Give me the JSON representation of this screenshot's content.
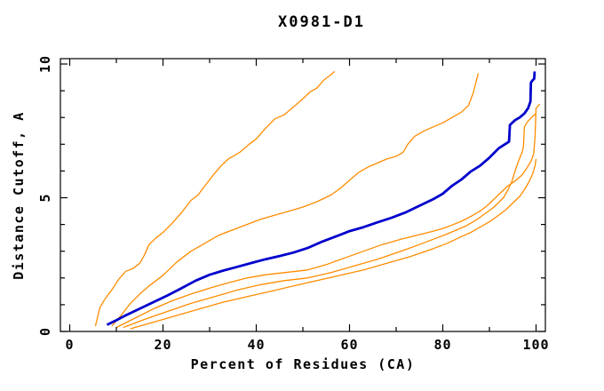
{
  "window": {
    "title": "X0981-D1"
  },
  "chart_data": {
    "type": "line",
    "title": "X0981-D1",
    "xlabel": "Percent of Residues (CA)",
    "ylabel": "Distance Cutoff, A",
    "xlim": [
      -2,
      102
    ],
    "ylim": [
      0,
      10.2
    ],
    "grid": false,
    "legend": null,
    "xticks": {
      "major": [
        0,
        20,
        40,
        60,
        80,
        100
      ],
      "minor": [
        10,
        30,
        50,
        70,
        90
      ],
      "major_labels": [
        "0",
        "20",
        "40",
        "60",
        "80",
        "100"
      ]
    },
    "yticks": {
      "major": [
        0,
        5,
        10
      ],
      "minor": [
        1,
        2,
        3,
        4,
        6,
        7,
        8,
        9
      ],
      "major_labels": [
        "0",
        "5",
        "10"
      ]
    },
    "colors": {
      "orange_series": "#ff8c00",
      "blue_series": "#0000cc",
      "axis": "#000000",
      "background": "#ffffff"
    },
    "series": [
      {
        "name": "orange-1",
        "color": "#ff8c00",
        "width": 1.3,
        "points": [
          [
            5.5,
            0.2
          ],
          [
            6,
            0.55
          ],
          [
            6.5,
            0.9
          ],
          [
            7.5,
            1.2
          ],
          [
            9,
            1.55
          ],
          [
            10.5,
            1.95
          ],
          [
            12,
            2.25
          ],
          [
            13.5,
            2.35
          ],
          [
            15,
            2.55
          ],
          [
            16,
            2.85
          ],
          [
            17,
            3.25
          ],
          [
            18.5,
            3.5
          ],
          [
            20,
            3.7
          ],
          [
            22,
            4.05
          ],
          [
            24,
            4.45
          ],
          [
            26,
            4.9
          ],
          [
            27.5,
            5.1
          ],
          [
            29,
            5.45
          ],
          [
            31,
            5.9
          ],
          [
            32.5,
            6.2
          ],
          [
            34,
            6.45
          ],
          [
            36.5,
            6.7
          ],
          [
            38.5,
            7.0
          ],
          [
            40,
            7.2
          ],
          [
            42,
            7.6
          ],
          [
            44,
            7.95
          ],
          [
            46,
            8.1
          ],
          [
            48,
            8.4
          ],
          [
            50,
            8.7
          ],
          [
            51.5,
            8.95
          ],
          [
            53,
            9.1
          ],
          [
            54.5,
            9.4
          ],
          [
            56,
            9.6
          ],
          [
            56.8,
            9.72
          ]
        ]
      },
      {
        "name": "orange-2",
        "color": "#ff8c00",
        "width": 1.3,
        "points": [
          [
            9,
            0.2
          ],
          [
            11,
            0.6
          ],
          [
            13,
            1.05
          ],
          [
            15,
            1.4
          ],
          [
            17,
            1.7
          ],
          [
            20,
            2.1
          ],
          [
            23,
            2.6
          ],
          [
            26,
            3.0
          ],
          [
            29,
            3.3
          ],
          [
            32,
            3.6
          ],
          [
            35,
            3.8
          ],
          [
            38,
            4.0
          ],
          [
            41,
            4.2
          ],
          [
            44,
            4.35
          ],
          [
            47,
            4.5
          ],
          [
            50,
            4.65
          ],
          [
            53,
            4.85
          ],
          [
            56,
            5.1
          ],
          [
            58,
            5.35
          ],
          [
            60,
            5.65
          ],
          [
            62,
            5.95
          ],
          [
            64,
            6.15
          ],
          [
            66,
            6.3
          ],
          [
            68,
            6.45
          ],
          [
            70,
            6.55
          ],
          [
            71.5,
            6.7
          ],
          [
            72.5,
            7.0
          ],
          [
            74,
            7.3
          ],
          [
            76,
            7.5
          ],
          [
            78,
            7.65
          ],
          [
            80,
            7.8
          ],
          [
            82,
            8.0
          ],
          [
            84,
            8.2
          ],
          [
            85.5,
            8.45
          ],
          [
            86.5,
            8.9
          ],
          [
            87,
            9.25
          ],
          [
            87.6,
            9.65
          ]
        ]
      },
      {
        "name": "orange-3",
        "color": "#ff8c00",
        "width": 1.3,
        "points": [
          [
            10,
            0.15
          ],
          [
            14,
            0.5
          ],
          [
            18,
            0.85
          ],
          [
            22,
            1.15
          ],
          [
            26,
            1.4
          ],
          [
            30,
            1.62
          ],
          [
            34,
            1.82
          ],
          [
            38,
            2.0
          ],
          [
            42,
            2.12
          ],
          [
            46,
            2.2
          ],
          [
            51,
            2.3
          ],
          [
            55,
            2.5
          ],
          [
            59,
            2.75
          ],
          [
            63,
            3.0
          ],
          [
            67,
            3.25
          ],
          [
            71,
            3.45
          ],
          [
            75,
            3.62
          ],
          [
            78,
            3.75
          ],
          [
            80,
            3.85
          ],
          [
            82,
            3.98
          ],
          [
            84,
            4.12
          ],
          [
            86,
            4.3
          ],
          [
            88,
            4.5
          ],
          [
            89.5,
            4.7
          ],
          [
            91,
            4.95
          ],
          [
            92.5,
            5.2
          ],
          [
            94,
            5.45
          ],
          [
            95.5,
            5.62
          ],
          [
            97,
            5.85
          ],
          [
            98,
            6.1
          ],
          [
            99,
            6.4
          ],
          [
            99.5,
            6.65
          ],
          [
            99.8,
            7.3
          ],
          [
            100,
            8.35
          ],
          [
            100.8,
            8.5
          ]
        ]
      },
      {
        "name": "orange-4",
        "color": "#ff8c00",
        "width": 1.3,
        "points": [
          [
            11.5,
            0.15
          ],
          [
            16,
            0.45
          ],
          [
            21,
            0.75
          ],
          [
            26,
            1.05
          ],
          [
            31,
            1.3
          ],
          [
            36,
            1.55
          ],
          [
            41,
            1.75
          ],
          [
            46,
            1.9
          ],
          [
            51,
            2.0
          ],
          [
            56,
            2.2
          ],
          [
            61,
            2.45
          ],
          [
            66,
            2.7
          ],
          [
            71,
            3.0
          ],
          [
            75,
            3.25
          ],
          [
            78,
            3.45
          ],
          [
            81,
            3.65
          ],
          [
            83,
            3.8
          ],
          [
            85,
            3.95
          ],
          [
            87,
            4.15
          ],
          [
            89,
            4.4
          ],
          [
            91,
            4.65
          ],
          [
            93,
            5.0
          ],
          [
            94,
            5.3
          ],
          [
            94.8,
            5.6
          ],
          [
            95.5,
            6.0
          ],
          [
            96.3,
            6.4
          ],
          [
            97,
            6.7
          ],
          [
            97.3,
            6.9
          ],
          [
            97.5,
            7.65
          ],
          [
            98.2,
            7.85
          ],
          [
            99,
            8.0
          ],
          [
            100,
            8.15
          ]
        ]
      },
      {
        "name": "orange-5",
        "color": "#ff8c00",
        "width": 1.3,
        "points": [
          [
            13,
            0.1
          ],
          [
            18,
            0.35
          ],
          [
            23,
            0.6
          ],
          [
            28,
            0.85
          ],
          [
            33,
            1.1
          ],
          [
            38,
            1.3
          ],
          [
            43,
            1.5
          ],
          [
            48,
            1.7
          ],
          [
            53,
            1.9
          ],
          [
            58,
            2.1
          ],
          [
            63,
            2.3
          ],
          [
            68,
            2.55
          ],
          [
            73,
            2.8
          ],
          [
            78,
            3.1
          ],
          [
            81,
            3.3
          ],
          [
            84,
            3.55
          ],
          [
            86,
            3.7
          ],
          [
            88,
            3.9
          ],
          [
            90,
            4.1
          ],
          [
            92,
            4.35
          ],
          [
            93.5,
            4.55
          ],
          [
            95,
            4.8
          ],
          [
            96.5,
            5.05
          ],
          [
            97.5,
            5.3
          ],
          [
            98.5,
            5.6
          ],
          [
            99.3,
            5.9
          ],
          [
            99.8,
            6.2
          ],
          [
            100,
            6.45
          ]
        ]
      },
      {
        "name": "blue-main",
        "color": "#0000cc",
        "width": 2.8,
        "points": [
          [
            8,
            0.25
          ],
          [
            10,
            0.42
          ],
          [
            12,
            0.6
          ],
          [
            15,
            0.85
          ],
          [
            18,
            1.1
          ],
          [
            21,
            1.35
          ],
          [
            24,
            1.62
          ],
          [
            27,
            1.9
          ],
          [
            30,
            2.12
          ],
          [
            33,
            2.28
          ],
          [
            36,
            2.42
          ],
          [
            39,
            2.56
          ],
          [
            42,
            2.7
          ],
          [
            45,
            2.82
          ],
          [
            48,
            2.95
          ],
          [
            51,
            3.12
          ],
          [
            54,
            3.35
          ],
          [
            57,
            3.55
          ],
          [
            60,
            3.75
          ],
          [
            63,
            3.9
          ],
          [
            66,
            4.08
          ],
          [
            69,
            4.25
          ],
          [
            72,
            4.45
          ],
          [
            75,
            4.7
          ],
          [
            78,
            4.95
          ],
          [
            80,
            5.15
          ],
          [
            82,
            5.45
          ],
          [
            84,
            5.68
          ],
          [
            86,
            5.98
          ],
          [
            88,
            6.2
          ],
          [
            90,
            6.5
          ],
          [
            92,
            6.85
          ],
          [
            93.8,
            7.05
          ],
          [
            94.2,
            7.1
          ],
          [
            94.4,
            7.72
          ],
          [
            95.5,
            7.9
          ],
          [
            96.5,
            8.0
          ],
          [
            97.5,
            8.15
          ],
          [
            98.3,
            8.35
          ],
          [
            98.8,
            8.6
          ],
          [
            98.9,
            9.3
          ],
          [
            99.3,
            9.4
          ],
          [
            99.6,
            9.45
          ],
          [
            99.7,
            9.72
          ]
        ]
      }
    ]
  }
}
